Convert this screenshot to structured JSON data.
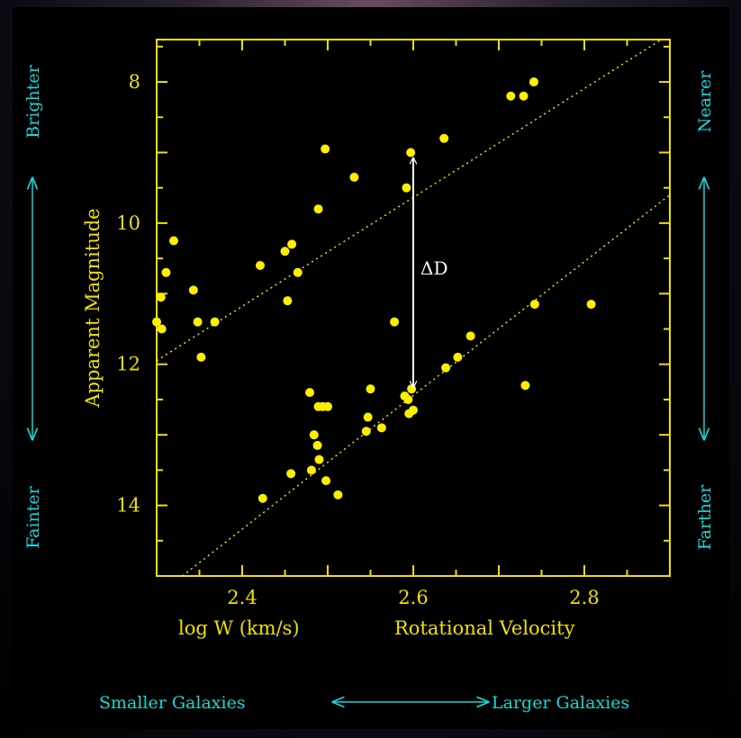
{
  "colors": {
    "axis": "#f0e000",
    "points": "#ffee00",
    "annotation": "#19d6d6",
    "arrow": "#ffffff"
  },
  "chart_data": {
    "type": "scatter",
    "title": "",
    "xlabel": "log W (km/s)",
    "xlabel_secondary": "Rotational Velocity",
    "ylabel": "Apparent Magnitude",
    "xlim": [
      2.3,
      2.9
    ],
    "ylim": [
      15.0,
      7.4
    ],
    "y_inverted": true,
    "x_ticks": [
      2.4,
      2.6,
      2.8
    ],
    "x_tick_labels": [
      "2.4",
      "2.6",
      "2.8"
    ],
    "y_ticks": [
      8,
      10,
      12,
      14
    ],
    "y_tick_labels": [
      "8",
      "10",
      "12",
      "14"
    ],
    "grid": false,
    "side_labels": {
      "left_top": "Brighter",
      "left_bottom": "Fainter",
      "right_top": "Nearer",
      "right_bottom": "Farther",
      "bottom_left": "Smaller Galaxies",
      "bottom_right": "Larger Galaxies"
    },
    "annotation": {
      "text": "ΔD",
      "x": 2.6,
      "y_from": 9.05,
      "y_to": 12.35
    },
    "fit_lines": [
      {
        "x": [
          2.3,
          2.89
        ],
        "y": [
          11.95,
          7.4
        ]
      },
      {
        "x": [
          2.33,
          2.9
        ],
        "y": [
          15.0,
          9.6
        ]
      }
    ],
    "series": [
      {
        "x": [
          2.714,
          2.729,
          2.741,
          2.636,
          2.597,
          2.592,
          2.531,
          2.497,
          2.489,
          2.32,
          2.311,
          2.305,
          2.343,
          2.348,
          2.368,
          2.352,
          2.3,
          2.306,
          2.421,
          2.45,
          2.458,
          2.465,
          2.453,
          2.578,
          2.667,
          2.652,
          2.638,
          2.742,
          2.808,
          2.731,
          2.598,
          2.594,
          2.59,
          2.6,
          2.595,
          2.55,
          2.547,
          2.545,
          2.563,
          2.494,
          2.5,
          2.489,
          2.479,
          2.484,
          2.488,
          2.49,
          2.481,
          2.498,
          2.457,
          2.512,
          2.424
        ],
        "y": [
          8.2,
          8.2,
          8.0,
          8.8,
          9.0,
          9.5,
          9.35,
          8.95,
          9.8,
          10.25,
          10.7,
          11.05,
          10.95,
          11.4,
          11.4,
          11.9,
          11.4,
          11.5,
          10.6,
          10.4,
          10.3,
          10.7,
          11.1,
          11.4,
          11.6,
          11.9,
          12.05,
          11.15,
          11.15,
          12.3,
          12.35,
          12.5,
          12.45,
          12.65,
          12.7,
          12.35,
          12.75,
          12.95,
          12.9,
          12.6,
          12.6,
          12.6,
          12.4,
          13.0,
          13.15,
          13.35,
          13.5,
          13.65,
          13.55,
          13.85,
          13.9
        ]
      }
    ]
  }
}
